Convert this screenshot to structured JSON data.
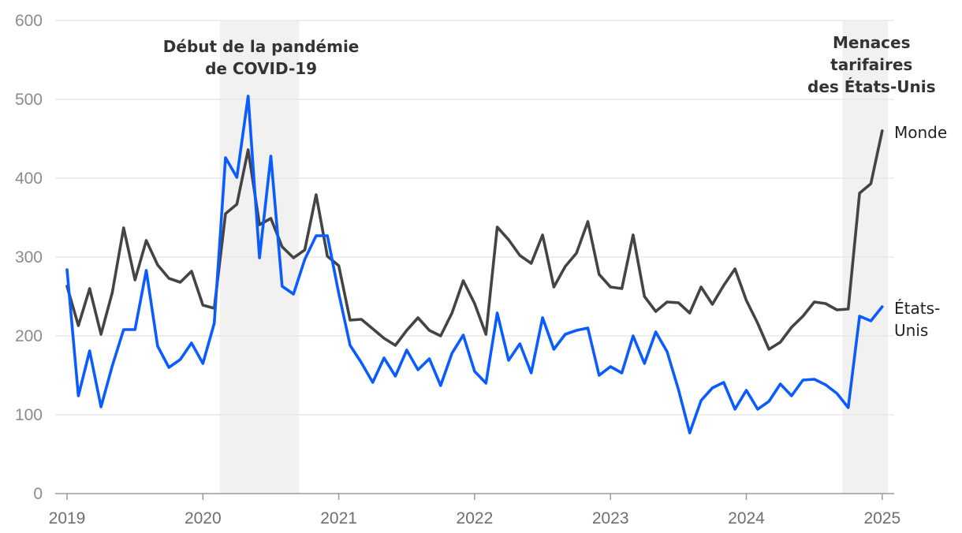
{
  "chart_data": {
    "type": "line",
    "title": "",
    "xlabel": "",
    "ylabel": "",
    "ylim": [
      0,
      600
    ],
    "yticks": [
      0,
      100,
      200,
      300,
      400,
      500,
      600
    ],
    "xticks": [
      "2019",
      "2020",
      "2021",
      "2022",
      "2023",
      "2024",
      "2025"
    ],
    "grid": true,
    "legend": "none (series labelled at line ends)",
    "shaded_periods": [
      {
        "label_lines": [
          "Début de la pandémie",
          "de COVID-19"
        ],
        "start": "2020-03",
        "end": "2020-09"
      },
      {
        "label_lines": [
          "Menaces",
          "tarifaires",
          "des États-Unis"
        ],
        "start": "2024-10",
        "end": "2025-01"
      }
    ],
    "x": [
      "2019-01",
      "2019-02",
      "2019-03",
      "2019-04",
      "2019-05",
      "2019-06",
      "2019-07",
      "2019-08",
      "2019-09",
      "2019-10",
      "2019-11",
      "2019-12",
      "2020-01",
      "2020-02",
      "2020-03",
      "2020-04",
      "2020-05",
      "2020-06",
      "2020-07",
      "2020-08",
      "2020-09",
      "2020-10",
      "2020-11",
      "2020-12",
      "2021-01",
      "2021-02",
      "2021-03",
      "2021-04",
      "2021-05",
      "2021-06",
      "2021-07",
      "2021-08",
      "2021-09",
      "2021-10",
      "2021-11",
      "2021-12",
      "2022-01",
      "2022-02",
      "2022-03",
      "2022-04",
      "2022-05",
      "2022-06",
      "2022-07",
      "2022-08",
      "2022-09",
      "2022-10",
      "2022-11",
      "2022-12",
      "2023-01",
      "2023-02",
      "2023-03",
      "2023-04",
      "2023-05",
      "2023-06",
      "2023-07",
      "2023-08",
      "2023-09",
      "2023-10",
      "2023-11",
      "2023-12",
      "2024-01",
      "2024-02",
      "2024-03",
      "2024-04",
      "2024-05",
      "2024-06",
      "2024-07",
      "2024-08",
      "2024-09",
      "2024-10",
      "2024-11",
      "2024-12",
      "2025-01"
    ],
    "series": [
      {
        "name": "Monde",
        "color": "#444444",
        "values": [
          263,
          213,
          260,
          202,
          255,
          337,
          271,
          321,
          290,
          273,
          268,
          282,
          239,
          235,
          355,
          367,
          436,
          341,
          349,
          313,
          299,
          309,
          379,
          301,
          289,
          220,
          221,
          209,
          197,
          188,
          207,
          223,
          207,
          200,
          229,
          270,
          241,
          202,
          338,
          322,
          302,
          292,
          328,
          262,
          288,
          305,
          345,
          278,
          262,
          260,
          328,
          250,
          231,
          243,
          242,
          229,
          262,
          240,
          264,
          285,
          245,
          216,
          183,
          192,
          211,
          225,
          243,
          241,
          233,
          234,
          381,
          393,
          460
        ]
      },
      {
        "name": "États-Unis",
        "color": "#0a5cff",
        "values": [
          284,
          124,
          181,
          110,
          162,
          208,
          208,
          283,
          187,
          160,
          170,
          191,
          165,
          216,
          426,
          401,
          504,
          299,
          428,
          263,
          253,
          297,
          327,
          327,
          254,
          188,
          166,
          141,
          172,
          149,
          182,
          157,
          171,
          137,
          178,
          201,
          155,
          140,
          229,
          169,
          190,
          153,
          223,
          183,
          202,
          207,
          210,
          150,
          161,
          153,
          200,
          165,
          205,
          180,
          132,
          77,
          118,
          134,
          141,
          107,
          131,
          107,
          117,
          139,
          124,
          144,
          145,
          138,
          127,
          109,
          225,
          219,
          237
        ]
      }
    ]
  },
  "labels": {
    "monde": "Monde",
    "etats_unis_line1": "États-",
    "etats_unis_line2": "Unis"
  }
}
